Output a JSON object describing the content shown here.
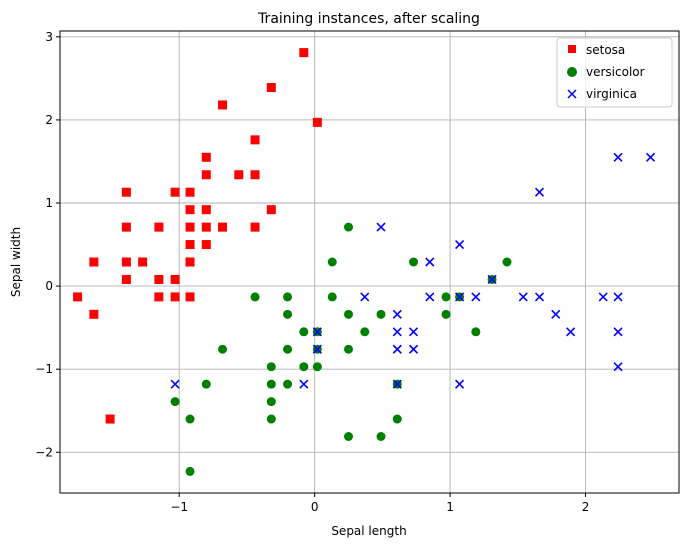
{
  "chart_data": {
    "type": "scatter",
    "title": "Training instances, after scaling",
    "xlabel": "Sepal length",
    "ylabel": "Sepal width",
    "xlim": [
      -1.88,
      2.69
    ],
    "ylim": [
      -2.49,
      3.07
    ],
    "xticks": [
      -1,
      0,
      1,
      2
    ],
    "xtick_labels": [
      "−1",
      "0",
      "1",
      "2"
    ],
    "yticks": [
      -2,
      -1,
      0,
      1,
      2,
      3
    ],
    "ytick_labels": [
      "−2",
      "−1",
      "0",
      "1",
      "2",
      "3"
    ],
    "grid": true,
    "legend_position": "top-right",
    "series": [
      {
        "name": "setosa",
        "marker": "square",
        "color": "#ff0000",
        "points": [
          [
            -1.75,
            -0.13
          ],
          [
            -1.63,
            0.29
          ],
          [
            -1.63,
            -0.34
          ],
          [
            -1.51,
            -1.6
          ],
          [
            -1.39,
            1.13
          ],
          [
            -1.39,
            0.71
          ],
          [
            -1.39,
            0.29
          ],
          [
            -1.39,
            0.08
          ],
          [
            -1.27,
            0.29
          ],
          [
            -1.15,
            0.71
          ],
          [
            -1.15,
            0.08
          ],
          [
            -1.15,
            -0.13
          ],
          [
            -1.03,
            1.13
          ],
          [
            -1.03,
            0.08
          ],
          [
            -1.03,
            -0.13
          ],
          [
            -0.92,
            1.13
          ],
          [
            -0.92,
            0.92
          ],
          [
            -0.92,
            0.71
          ],
          [
            -0.92,
            0.5
          ],
          [
            -0.92,
            0.29
          ],
          [
            -0.92,
            -0.13
          ],
          [
            -0.8,
            1.55
          ],
          [
            -0.8,
            1.34
          ],
          [
            -0.8,
            0.92
          ],
          [
            -0.8,
            0.71
          ],
          [
            -0.8,
            0.5
          ],
          [
            -0.68,
            2.18
          ],
          [
            -0.68,
            0.71
          ],
          [
            -0.56,
            1.34
          ],
          [
            -0.44,
            1.76
          ],
          [
            -0.44,
            1.34
          ],
          [
            -0.44,
            0.71
          ],
          [
            -0.32,
            2.39
          ],
          [
            -0.32,
            0.92
          ],
          [
            -0.08,
            2.81
          ],
          [
            0.02,
            1.97
          ]
        ]
      },
      {
        "name": "versicolor",
        "marker": "circle",
        "color": "#008000",
        "points": [
          [
            -1.03,
            -1.39
          ],
          [
            -0.92,
            -1.6
          ],
          [
            -0.92,
            -2.23
          ],
          [
            -0.8,
            -1.18
          ],
          [
            -0.68,
            -0.76
          ],
          [
            -0.44,
            -0.13
          ],
          [
            -0.32,
            -0.97
          ],
          [
            -0.32,
            -1.18
          ],
          [
            -0.32,
            -1.39
          ],
          [
            -0.32,
            -1.6
          ],
          [
            -0.2,
            -0.13
          ],
          [
            -0.2,
            -0.34
          ],
          [
            -0.2,
            -0.76
          ],
          [
            -0.2,
            -1.18
          ],
          [
            -0.08,
            -0.55
          ],
          [
            -0.08,
            -0.97
          ],
          [
            0.02,
            -0.55
          ],
          [
            0.02,
            -0.76
          ],
          [
            0.02,
            -0.97
          ],
          [
            0.13,
            0.29
          ],
          [
            0.13,
            -0.13
          ],
          [
            0.25,
            0.71
          ],
          [
            0.25,
            -0.34
          ],
          [
            0.25,
            -0.76
          ],
          [
            0.25,
            -1.81
          ],
          [
            0.37,
            -0.55
          ],
          [
            0.49,
            -0.34
          ],
          [
            0.49,
            -1.81
          ],
          [
            0.61,
            -1.18
          ],
          [
            0.61,
            -1.6
          ],
          [
            0.73,
            0.29
          ],
          [
            0.97,
            -0.13
          ],
          [
            0.97,
            -0.34
          ],
          [
            1.07,
            -0.13
          ],
          [
            1.19,
            -0.55
          ],
          [
            1.31,
            0.08
          ],
          [
            1.42,
            0.29
          ]
        ]
      },
      {
        "name": "virginica",
        "marker": "x",
        "color": "#0000ff",
        "points": [
          [
            -1.03,
            -1.18
          ],
          [
            -0.08,
            -1.18
          ],
          [
            0.02,
            -0.55
          ],
          [
            0.02,
            -0.76
          ],
          [
            0.37,
            -0.13
          ],
          [
            0.49,
            0.71
          ],
          [
            0.61,
            -0.34
          ],
          [
            0.61,
            -0.55
          ],
          [
            0.61,
            -0.76
          ],
          [
            0.61,
            -1.18
          ],
          [
            0.73,
            -0.55
          ],
          [
            0.73,
            -0.76
          ],
          [
            0.85,
            0.29
          ],
          [
            0.85,
            -0.13
          ],
          [
            1.07,
            0.5
          ],
          [
            1.07,
            -0.13
          ],
          [
            1.07,
            -1.18
          ],
          [
            1.19,
            -0.13
          ],
          [
            1.31,
            0.08
          ],
          [
            1.54,
            -0.13
          ],
          [
            1.66,
            1.13
          ],
          [
            1.66,
            -0.13
          ],
          [
            1.78,
            -0.34
          ],
          [
            1.89,
            -0.55
          ],
          [
            2.13,
            -0.13
          ],
          [
            2.24,
            1.55
          ],
          [
            2.24,
            -0.13
          ],
          [
            2.24,
            -0.55
          ],
          [
            2.24,
            -0.97
          ],
          [
            2.48,
            1.55
          ]
        ]
      }
    ]
  }
}
